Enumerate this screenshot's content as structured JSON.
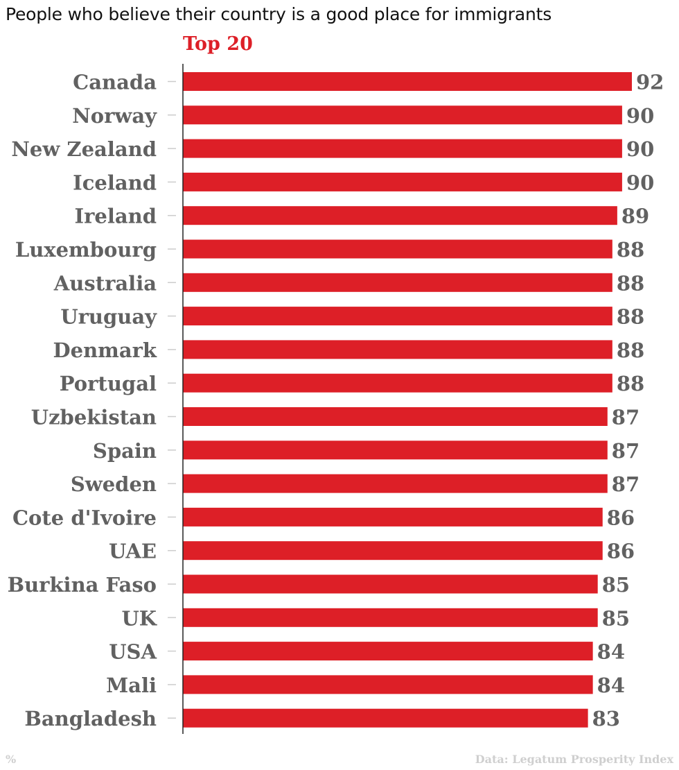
{
  "chart_data": {
    "type": "bar",
    "orientation": "horizontal",
    "title": "People who believe their country is a good place for immigrants",
    "subtitle": "Top 20",
    "categories": [
      "Canada",
      "Norway",
      "New Zealand",
      "Iceland",
      "Ireland",
      "Luxembourg",
      "Australia",
      "Uruguay",
      "Denmark",
      "Portugal",
      "Uzbekistan",
      "Spain",
      "Sweden",
      "Cote d'Ivoire",
      "UAE",
      "Burkina Faso",
      "UK",
      "USA",
      "Mali",
      "Bangladesh"
    ],
    "values": [
      92,
      90,
      90,
      90,
      89,
      88,
      88,
      88,
      88,
      88,
      87,
      87,
      87,
      86,
      86,
      85,
      85,
      84,
      84,
      83
    ],
    "xlim": [
      0,
      92
    ],
    "unit_label": "%",
    "source": "Data: Legatum Prosperity Index",
    "grid": false,
    "data_labels": true,
    "colors": {
      "bar": "#dd1f27",
      "label": "#616161",
      "axis": "#222222",
      "tick": "#cccccc"
    }
  }
}
